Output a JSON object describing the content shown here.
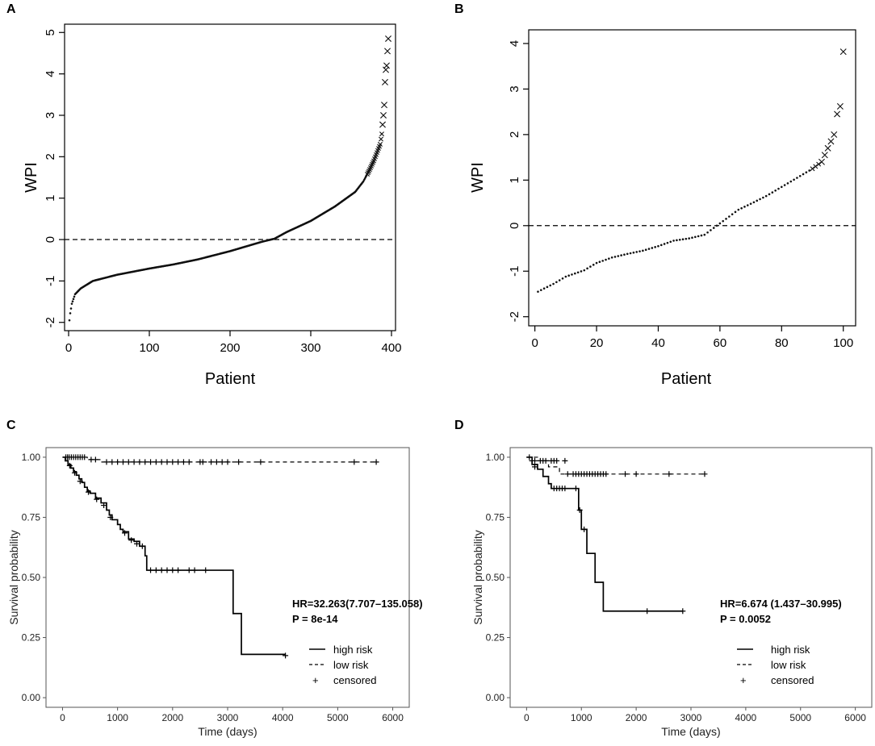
{
  "chart_data": [
    {
      "panel": "A",
      "type": "scatter",
      "xlabel": "Patient",
      "ylabel": "WPI",
      "xlim": [
        -5,
        405
      ],
      "ylim": [
        -2.2,
        5.2
      ],
      "xticks": [
        0,
        100,
        200,
        300,
        400
      ],
      "yticks": [
        -2,
        -1,
        0,
        1,
        2,
        3,
        4,
        5
      ],
      "reference_line": {
        "y": 0,
        "style": "dashed"
      },
      "n_points": 396,
      "curve_knots": {
        "x": [
          1,
          2,
          4,
          8,
          15,
          30,
          60,
          100,
          130,
          160,
          200,
          240,
          255,
          270,
          300,
          330,
          355,
          365,
          372,
          378,
          383,
          386,
          388,
          390,
          391,
          392,
          393,
          394,
          395,
          396
        ],
        "y": [
          -1.95,
          -1.78,
          -1.55,
          -1.32,
          -1.18,
          -1.0,
          -0.85,
          -0.7,
          -0.6,
          -0.48,
          -0.28,
          -0.05,
          0.02,
          0.18,
          0.45,
          0.8,
          1.15,
          1.4,
          1.65,
          1.9,
          2.15,
          2.3,
          2.55,
          3.0,
          3.25,
          3.8,
          4.1,
          4.2,
          4.55,
          4.85
        ]
      },
      "marker_change_index": 370
    },
    {
      "panel": "B",
      "type": "scatter",
      "xlabel": "Patient",
      "ylabel": "WPI",
      "xlim": [
        -2,
        104
      ],
      "ylim": [
        -2.2,
        4.3
      ],
      "xticks": [
        0,
        20,
        40,
        60,
        80,
        100
      ],
      "yticks": [
        -2,
        -1,
        0,
        1,
        2,
        3,
        4
      ],
      "reference_line": {
        "y": 0,
        "style": "dashed"
      },
      "n_points": 100,
      "curve_knots": {
        "x": [
          1,
          3,
          6,
          10,
          16,
          20,
          25,
          30,
          35,
          40,
          45,
          50,
          55,
          58,
          60,
          63,
          66,
          70,
          75,
          80,
          85,
          90,
          93,
          95,
          97,
          98,
          99,
          100
        ],
        "y": [
          -1.45,
          -1.38,
          -1.28,
          -1.12,
          -0.98,
          -0.82,
          -0.7,
          -0.62,
          -0.55,
          -0.45,
          -0.33,
          -0.28,
          -0.2,
          -0.05,
          0.05,
          0.2,
          0.35,
          0.48,
          0.65,
          0.85,
          1.05,
          1.25,
          1.4,
          1.7,
          2.0,
          2.45,
          2.62,
          3.82
        ]
      },
      "marker_change_index": 90
    },
    {
      "panel": "C",
      "type": "line",
      "subtype": "kaplan-meier",
      "xlabel": "Time (days)",
      "ylabel": "Survival probability",
      "xlim": [
        -300,
        6300
      ],
      "ylim": [
        -0.04,
        1.04
      ],
      "xticks": [
        0,
        1000,
        2000,
        3000,
        4000,
        5000,
        6000
      ],
      "yticks": [
        "0.00",
        "0.25",
        "0.50",
        "0.75",
        "1.00"
      ],
      "annotation": {
        "hr": "HR=32.263(7.707–135.058)",
        "p": "P = 8e-14"
      },
      "legend": {
        "high": "high risk",
        "low": "low risk",
        "censored": "censored"
      },
      "series": [
        {
          "name": "high risk",
          "style": "solid",
          "steps": [
            [
              0,
              1.0
            ],
            [
              50,
              0.985
            ],
            [
              100,
              0.97
            ],
            [
              150,
              0.955
            ],
            [
              200,
              0.94
            ],
            [
              250,
              0.925
            ],
            [
              300,
              0.91
            ],
            [
              350,
              0.895
            ],
            [
              400,
              0.875
            ],
            [
              450,
              0.86
            ],
            [
              500,
              0.85
            ],
            [
              600,
              0.83
            ],
            [
              700,
              0.81
            ],
            [
              800,
              0.78
            ],
            [
              850,
              0.76
            ],
            [
              900,
              0.74
            ],
            [
              1000,
              0.72
            ],
            [
              1050,
              0.7
            ],
            [
              1100,
              0.69
            ],
            [
              1200,
              0.66
            ],
            [
              1300,
              0.65
            ],
            [
              1400,
              0.63
            ],
            [
              1500,
              0.59
            ],
            [
              1530,
              0.53
            ],
            [
              3100,
              0.35
            ],
            [
              3250,
              0.18
            ],
            [
              4050,
              0.18
            ]
          ],
          "censored": [
            [
              130,
              0.965
            ],
            [
              220,
              0.935
            ],
            [
              320,
              0.9
            ],
            [
              470,
              0.855
            ],
            [
              620,
              0.825
            ],
            [
              750,
              0.8
            ],
            [
              870,
              0.75
            ],
            [
              1130,
              0.685
            ],
            [
              1250,
              0.655
            ],
            [
              1350,
              0.64
            ],
            [
              1450,
              0.63
            ],
            [
              1600,
              0.53
            ],
            [
              1700,
              0.53
            ],
            [
              1800,
              0.53
            ],
            [
              1900,
              0.53
            ],
            [
              2000,
              0.53
            ],
            [
              2100,
              0.53
            ],
            [
              2300,
              0.53
            ],
            [
              2400,
              0.53
            ],
            [
              2600,
              0.53
            ],
            [
              4050,
              0.175
            ]
          ]
        },
        {
          "name": "low risk",
          "style": "dashed",
          "steps": [
            [
              0,
              1.0
            ],
            [
              450,
              0.99
            ],
            [
              700,
              0.98
            ],
            [
              5700,
              0.98
            ]
          ],
          "censored": [
            [
              60,
              1.0
            ],
            [
              90,
              1.0
            ],
            [
              120,
              1.0
            ],
            [
              160,
              1.0
            ],
            [
              200,
              1.0
            ],
            [
              240,
              1.0
            ],
            [
              280,
              1.0
            ],
            [
              320,
              1.0
            ],
            [
              360,
              1.0
            ],
            [
              400,
              1.0
            ],
            [
              520,
              0.99
            ],
            [
              600,
              0.99
            ],
            [
              800,
              0.98
            ],
            [
              900,
              0.98
            ],
            [
              1000,
              0.98
            ],
            [
              1100,
              0.98
            ],
            [
              1200,
              0.98
            ],
            [
              1300,
              0.98
            ],
            [
              1400,
              0.98
            ],
            [
              1500,
              0.98
            ],
            [
              1600,
              0.98
            ],
            [
              1700,
              0.98
            ],
            [
              1800,
              0.98
            ],
            [
              1900,
              0.98
            ],
            [
              2000,
              0.98
            ],
            [
              2100,
              0.98
            ],
            [
              2200,
              0.98
            ],
            [
              2300,
              0.98
            ],
            [
              2500,
              0.98
            ],
            [
              2550,
              0.98
            ],
            [
              2700,
              0.98
            ],
            [
              2800,
              0.98
            ],
            [
              2900,
              0.98
            ],
            [
              3000,
              0.98
            ],
            [
              3200,
              0.98
            ],
            [
              3600,
              0.98
            ],
            [
              5300,
              0.98
            ],
            [
              5700,
              0.98
            ]
          ]
        }
      ]
    },
    {
      "panel": "D",
      "type": "line",
      "subtype": "kaplan-meier",
      "xlabel": "Time (days)",
      "ylabel": "Survival probability",
      "xlim": [
        -300,
        6300
      ],
      "ylim": [
        -0.04,
        1.04
      ],
      "xticks": [
        0,
        1000,
        2000,
        3000,
        4000,
        5000,
        6000
      ],
      "yticks": [
        "0.00",
        "0.25",
        "0.50",
        "0.75",
        "1.00"
      ],
      "annotation": {
        "hr": "HR=6.674 (1.437–30.995)",
        "p": "P = 0.0052"
      },
      "legend": {
        "high": "high risk",
        "low": "low risk",
        "censored": "censored"
      },
      "series": [
        {
          "name": "high risk",
          "style": "solid",
          "steps": [
            [
              0,
              1.0
            ],
            [
              100,
              0.97
            ],
            [
              200,
              0.95
            ],
            [
              300,
              0.92
            ],
            [
              400,
              0.89
            ],
            [
              450,
              0.87
            ],
            [
              950,
              0.78
            ],
            [
              1000,
              0.7
            ],
            [
              1100,
              0.6
            ],
            [
              1250,
              0.48
            ],
            [
              1400,
              0.36
            ],
            [
              2850,
              0.36
            ]
          ],
          "censored": [
            [
              150,
              0.96
            ],
            [
              500,
              0.87
            ],
            [
              550,
              0.87
            ],
            [
              600,
              0.87
            ],
            [
              650,
              0.87
            ],
            [
              700,
              0.87
            ],
            [
              900,
              0.87
            ],
            [
              970,
              0.78
            ],
            [
              1050,
              0.7
            ],
            [
              2200,
              0.36
            ],
            [
              2850,
              0.36
            ]
          ]
        },
        {
          "name": "low risk",
          "style": "dashed",
          "steps": [
            [
              0,
              1.0
            ],
            [
              200,
              0.985
            ],
            [
              400,
              0.96
            ],
            [
              600,
              0.93
            ],
            [
              3250,
              0.93
            ]
          ],
          "censored": [
            [
              50,
              1.0
            ],
            [
              100,
              0.985
            ],
            [
              150,
              0.985
            ],
            [
              250,
              0.985
            ],
            [
              300,
              0.985
            ],
            [
              350,
              0.985
            ],
            [
              450,
              0.985
            ],
            [
              500,
              0.985
            ],
            [
              550,
              0.985
            ],
            [
              700,
              0.985
            ],
            [
              750,
              0.93
            ],
            [
              850,
              0.93
            ],
            [
              900,
              0.93
            ],
            [
              950,
              0.93
            ],
            [
              1000,
              0.93
            ],
            [
              1050,
              0.93
            ],
            [
              1100,
              0.93
            ],
            [
              1150,
              0.93
            ],
            [
              1200,
              0.93
            ],
            [
              1250,
              0.93
            ],
            [
              1300,
              0.93
            ],
            [
              1350,
              0.93
            ],
            [
              1400,
              0.93
            ],
            [
              1450,
              0.93
            ],
            [
              1800,
              0.93
            ],
            [
              2000,
              0.93
            ],
            [
              2600,
              0.93
            ],
            [
              3250,
              0.93
            ]
          ]
        }
      ]
    }
  ]
}
